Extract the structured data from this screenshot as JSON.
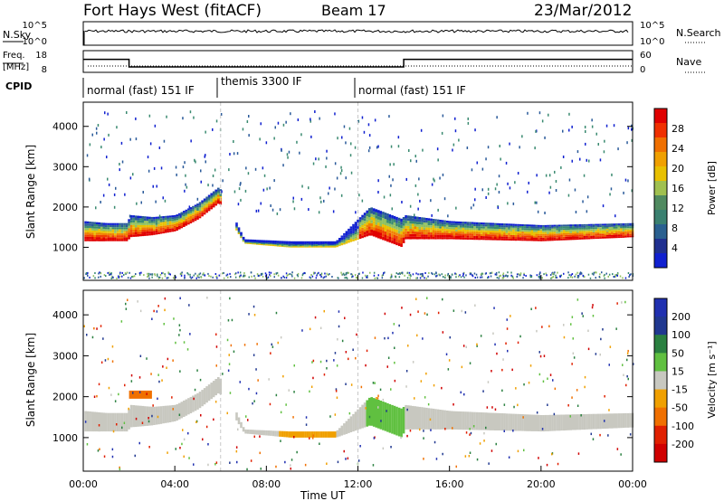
{
  "header": {
    "title": "Fort Hays West (fitACF)",
    "beam": "Beam 17",
    "date": "23/Mar/2012"
  },
  "panels": {
    "nsky_label": "N.Sky",
    "nsky_ticks": [
      "10^5",
      "10^0"
    ],
    "nsearch_label": "N.Search",
    "nsearch_ticks": [
      "10^5",
      "10^0"
    ],
    "freq_label_1": "Freq.",
    "freq_label_2": "[MHz]",
    "freq_ticks": [
      "18",
      "8"
    ],
    "nave_label": "Nave",
    "nave_ticks": [
      "60",
      "0"
    ],
    "cpid_label": "CPID",
    "cpid_segments": [
      {
        "label": "normal (fast) 151 IF",
        "start_hour": 0,
        "end_hour": 6
      },
      {
        "label": "themis 3300 IF",
        "start_hour": 6,
        "end_hour": 12
      },
      {
        "label": "normal (fast) 151 IF",
        "start_hour": 12,
        "end_hour": 24
      }
    ]
  },
  "colorbars": {
    "power": {
      "label": "Power [dB]",
      "ticks": [
        "28",
        "24",
        "20",
        "16",
        "12",
        "8",
        "4"
      ],
      "colors": [
        "#e00000",
        "#f03000",
        "#f07000",
        "#f0a000",
        "#e8c000",
        "#a0c050",
        "#508a60",
        "#3a8070",
        "#2a6090",
        "#203090",
        "#1020d0"
      ]
    },
    "velocity": {
      "label": "Velocity [m s⁻¹]",
      "ticks": [
        "200",
        "100",
        "50",
        "15",
        "-15",
        "-50",
        "-100",
        "-200"
      ],
      "colors": [
        "#2030b0",
        "#203890",
        "#2a8040",
        "#60c040",
        "#c8c8c0",
        "#f0a000",
        "#f07000",
        "#e02000",
        "#d00000"
      ]
    }
  },
  "chart_data": {
    "type": "heatmap",
    "xlabel": "Time UT",
    "ylabel": "Slant Range [km]",
    "x_ticks": [
      "00:00",
      "04:00",
      "08:00",
      "12:00",
      "16:00",
      "20:00",
      "00:00"
    ],
    "y_ticks": [
      "1000",
      "2000",
      "3000",
      "4000"
    ],
    "xlim_hours": [
      0,
      24
    ],
    "ylim_km": [
      180,
      4600
    ],
    "freq_mhz": [
      {
        "start_hour": 0,
        "end_hour": 2,
        "value": 14.0
      },
      {
        "start_hour": 2,
        "end_hour": 14,
        "value": 10.5
      },
      {
        "start_hour": 14,
        "end_hour": 24,
        "value": 14.0
      }
    ],
    "power_echo_band_km": [
      {
        "hour": 0.0,
        "inner": 1150,
        "outer": 1650
      },
      {
        "hour": 1.0,
        "inner": 1150,
        "outer": 1600
      },
      {
        "hour": 1.9,
        "inner": 1150,
        "outer": 1600
      },
      {
        "hour": 2.0,
        "inner": 1250,
        "outer": 1800
      },
      {
        "hour": 3.0,
        "inner": 1300,
        "outer": 1750
      },
      {
        "hour": 4.0,
        "inner": 1400,
        "outer": 1800
      },
      {
        "hour": 5.0,
        "inner": 1700,
        "outer": 2100
      },
      {
        "hour": 5.9,
        "inner": 2100,
        "outer": 2500
      },
      {
        "hour": 7.0,
        "inner": 1100,
        "outer": 1200
      },
      {
        "hour": 9.0,
        "inner": 1000,
        "outer": 1150
      },
      {
        "hour": 11.0,
        "inner": 1000,
        "outer": 1150
      },
      {
        "hour": 12.5,
        "inner": 1300,
        "outer": 2000
      },
      {
        "hour": 13.9,
        "inner": 1000,
        "outer": 1700
      },
      {
        "hour": 14.0,
        "inner": 1200,
        "outer": 1800
      },
      {
        "hour": 16.0,
        "inner": 1200,
        "outer": 1650
      },
      {
        "hour": 20.0,
        "inner": 1150,
        "outer": 1550
      },
      {
        "hour": 24.0,
        "inner": 1250,
        "outer": 1600
      }
    ],
    "velocity_notes": [
      {
        "hour_start": 2.0,
        "hour_end": 3.0,
        "range_km": 2050,
        "velocity": "-50 to -100"
      },
      {
        "hour_start": 8.5,
        "hour_end": 11.0,
        "range_km": 1050,
        "velocity": "-50 to -100"
      },
      {
        "hour_start": 12.3,
        "hour_end": 14.0,
        "range_km": 1300,
        "velocity": "15 to 50"
      }
    ]
  }
}
